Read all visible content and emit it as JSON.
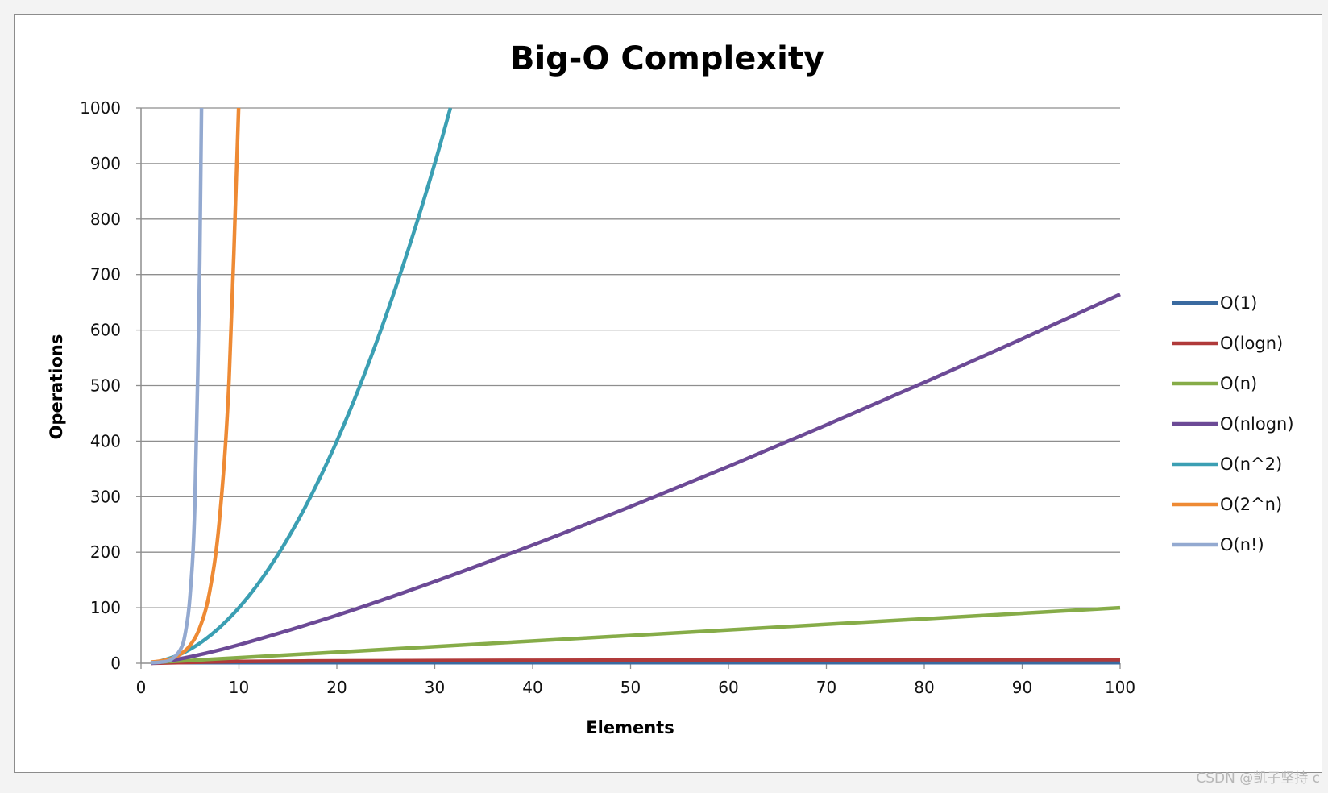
{
  "watermark": "CSDN @凯子坚持 c",
  "chart_data": {
    "type": "line",
    "title": "Big-O Complexity",
    "xlabel": "Elements",
    "ylabel": "Operations",
    "xlim": [
      0,
      100
    ],
    "ylim": [
      0,
      1000
    ],
    "xticks": [
      0,
      10,
      20,
      30,
      40,
      50,
      60,
      70,
      80,
      90,
      100
    ],
    "yticks": [
      0,
      100,
      200,
      300,
      400,
      500,
      600,
      700,
      800,
      900,
      1000
    ],
    "grid": "horizontal",
    "legend_position": "right",
    "series": [
      {
        "name": "O(1)",
        "color": "#3a6aa0",
        "x": [
          1,
          100
        ],
        "y": [
          1,
          1
        ]
      },
      {
        "name": "O(logn)",
        "color": "#b03a3a",
        "x": [
          1,
          10,
          20,
          30,
          40,
          50,
          60,
          70,
          80,
          90,
          100
        ],
        "y": [
          0,
          3.3,
          4.3,
          4.9,
          5.3,
          5.6,
          5.9,
          6.1,
          6.3,
          6.5,
          6.6
        ]
      },
      {
        "name": "O(n)",
        "color": "#86ac48",
        "x": [
          1,
          100
        ],
        "y": [
          1,
          100
        ]
      },
      {
        "name": "O(nlogn)",
        "color": "#6c4a96",
        "x": [
          1,
          2,
          5,
          10,
          20,
          30,
          40,
          50,
          60,
          70,
          80,
          90,
          100
        ],
        "y": [
          0,
          2,
          11.6,
          33.2,
          86.4,
          147.2,
          212.9,
          282.2,
          354.4,
          429.1,
          505.8,
          584.3,
          664.4
        ]
      },
      {
        "name": "O(n^2)",
        "color": "#3b9fb3",
        "x": [
          1,
          2,
          4,
          6,
          8,
          10,
          12,
          14,
          16,
          18,
          20,
          22,
          24,
          26,
          28,
          30,
          31.6
        ],
        "y": [
          1,
          4,
          16,
          36,
          64,
          100,
          144,
          196,
          256,
          324,
          400,
          484,
          576,
          676,
          784,
          900,
          1000
        ]
      },
      {
        "name": "O(2^n)",
        "color": "#ee8a34",
        "x": [
          1,
          2,
          3,
          4,
          5,
          6,
          7,
          8,
          9,
          9.97
        ],
        "y": [
          2,
          4,
          8,
          16,
          32,
          64,
          128,
          256,
          512,
          1000
        ]
      },
      {
        "name": "O(n!)",
        "color": "#93a9d0",
        "x": [
          1,
          2,
          3,
          4,
          4.5,
          5,
          5.5,
          6,
          6.18
        ],
        "y": [
          1,
          2,
          6,
          24,
          52,
          120,
          287,
          720,
          1000
        ]
      }
    ]
  }
}
